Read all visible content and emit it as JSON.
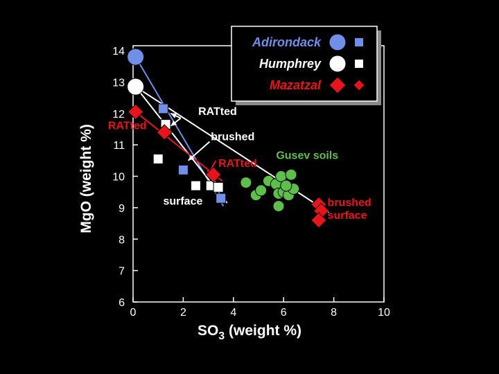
{
  "chart_data": {
    "type": "scatter",
    "xlabel": "SO",
    "xlabel_subscript": "3",
    "xlabel_suffix": " (weight %)",
    "ylabel": "MgO (weight %)",
    "xlim": [
      0,
      10
    ],
    "ylim": [
      6,
      14
    ],
    "x_ticks": [
      0,
      2,
      4,
      6,
      8,
      10
    ],
    "y_ticks": [
      6,
      7,
      8,
      9,
      10,
      11,
      12,
      13,
      14
    ],
    "grid": false,
    "legend_position": "top-right",
    "legend": [
      {
        "name": "Adirondack",
        "color": "#6f8fe8",
        "marker": "circle+square"
      },
      {
        "name": "Humphrey",
        "color": "#ffffff",
        "marker": "circle+square"
      },
      {
        "name": "Mazatzal",
        "color": "#e8141c",
        "marker": "diamond+diamond"
      }
    ],
    "series": [
      {
        "name": "Adirondack",
        "color": "#6f8fe8",
        "points": [
          {
            "x": 0.1,
            "y": 13.8,
            "marker": "circle"
          },
          {
            "x": 1.2,
            "y": 12.15,
            "marker": "square"
          },
          {
            "x": 2.0,
            "y": 10.2,
            "marker": "square"
          },
          {
            "x": 3.5,
            "y": 9.3,
            "marker": "square"
          }
        ]
      },
      {
        "name": "Humphrey",
        "color": "#ffffff",
        "points": [
          {
            "x": 0.1,
            "y": 12.85,
            "marker": "circle"
          },
          {
            "x": 1.3,
            "y": 11.65,
            "marker": "square"
          },
          {
            "x": 1.0,
            "y": 10.55,
            "marker": "square"
          },
          {
            "x": 2.5,
            "y": 9.7,
            "marker": "square"
          },
          {
            "x": 3.1,
            "y": 9.7,
            "marker": "square"
          },
          {
            "x": 3.4,
            "y": 9.65,
            "marker": "square"
          }
        ]
      },
      {
        "name": "Mazatzal",
        "color": "#e8141c",
        "points": [
          {
            "x": 0.1,
            "y": 12.05,
            "marker": "diamond"
          },
          {
            "x": 1.25,
            "y": 11.4,
            "marker": "diamond"
          },
          {
            "x": 3.2,
            "y": 10.05,
            "marker": "diamond"
          },
          {
            "x": 7.4,
            "y": 9.1,
            "marker": "diamond"
          },
          {
            "x": 7.5,
            "y": 8.9,
            "marker": "diamond"
          },
          {
            "x": 7.4,
            "y": 8.6,
            "marker": "diamond"
          }
        ]
      },
      {
        "name": "Gusev soils",
        "color": "#5cc04a",
        "points": [
          {
            "x": 4.5,
            "y": 9.8
          },
          {
            "x": 4.9,
            "y": 9.4
          },
          {
            "x": 5.1,
            "y": 9.55
          },
          {
            "x": 5.4,
            "y": 9.85
          },
          {
            "x": 5.7,
            "y": 9.75
          },
          {
            "x": 5.9,
            "y": 10.0
          },
          {
            "x": 6.3,
            "y": 10.05
          },
          {
            "x": 5.8,
            "y": 9.45
          },
          {
            "x": 6.0,
            "y": 9.5
          },
          {
            "x": 6.2,
            "y": 9.4
          },
          {
            "x": 6.4,
            "y": 9.6
          },
          {
            "x": 5.8,
            "y": 9.05
          },
          {
            "x": 6.1,
            "y": 9.7
          }
        ]
      }
    ],
    "trend_lines": [
      {
        "color": "#6f8fe8",
        "from": [
          0.1,
          13.8
        ],
        "to": [
          3.6,
          9.05
        ]
      },
      {
        "color": "#ffffff",
        "from": [
          0.1,
          12.85
        ],
        "to": [
          3.75,
          9.15
        ]
      },
      {
        "color": "#e8141c",
        "from": [
          0.1,
          12.05
        ],
        "to": [
          3.55,
          9.85
        ]
      },
      {
        "color": "#ffffff",
        "from": [
          0.1,
          12.85
        ],
        "to": [
          7.8,
          8.85
        ]
      }
    ],
    "annotations": [
      {
        "text": "RATted",
        "color": "#ffffff",
        "x": 2.6,
        "y": 11.95
      },
      {
        "text": "brushed",
        "color": "#ffffff",
        "x": 3.1,
        "y": 11.15
      },
      {
        "text": "RATted",
        "color": "#e8141c",
        "x": -1.0,
        "y": 11.5
      },
      {
        "text": "RATted",
        "color": "#e8141c",
        "x": 3.4,
        "y": 10.3
      },
      {
        "text": "Gusev soils",
        "color": "#5cc04a",
        "x": 5.7,
        "y": 10.55
      },
      {
        "text": "surface",
        "color": "#ffffff",
        "x": 1.2,
        "y": 9.1
      },
      {
        "text": "brushed",
        "color": "#e8141c",
        "x": 7.75,
        "y": 9.05
      },
      {
        "text": "surface",
        "color": "#e8141c",
        "x": 7.75,
        "y": 8.65
      }
    ],
    "arrows": [
      {
        "color": "#ffffff",
        "from": [
          1.9,
          11.85
        ],
        "to": [
          1.5,
          12.0
        ]
      },
      {
        "color": "#ffffff",
        "from": [
          1.9,
          11.85
        ],
        "to": [
          1.5,
          11.6
        ]
      },
      {
        "color": "#ffffff",
        "from": [
          3.05,
          11.1
        ],
        "to": [
          2.2,
          10.5
        ]
      },
      {
        "color": "#e8141c",
        "from": [
          3.3,
          10.5
        ],
        "to": [
          2.95,
          10.0
        ]
      }
    ]
  }
}
